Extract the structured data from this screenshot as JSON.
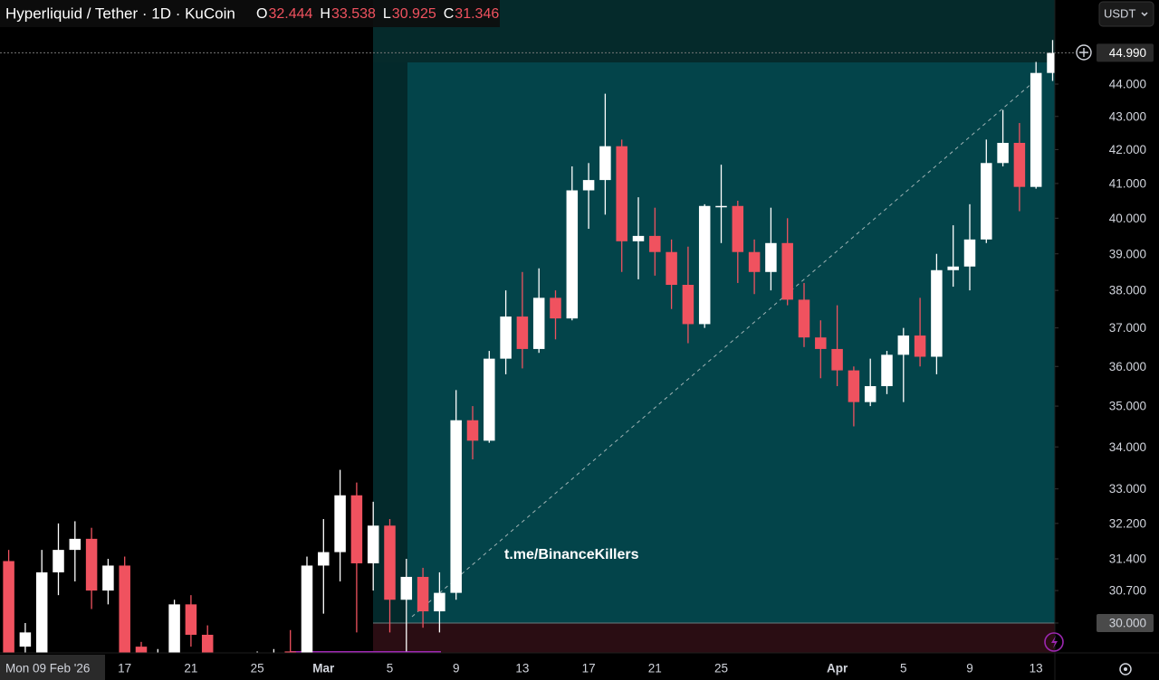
{
  "chart_data": {
    "type": "candlestick",
    "title": "Hyperliquid / Tether · 1D · KuCoin",
    "currency": "USDT",
    "watermark": "t.me/BinanceKillers",
    "ohlc_labels": [
      "O",
      "H",
      "L",
      "C"
    ],
    "log_scale": true,
    "grid": false,
    "up_color": "#ffffff",
    "down_color": "#f0525f",
    "categories": [
      "Mon 09 Feb '26",
      null,
      null,
      null,
      null,
      null,
      null,
      null,
      "17",
      null,
      null,
      null,
      "21",
      null,
      null,
      null,
      "25",
      null,
      null,
      null,
      "Mar",
      null,
      null,
      null,
      "5",
      null,
      null,
      null,
      "9",
      null,
      null,
      null,
      "13",
      null,
      null,
      null,
      "17",
      null,
      null,
      null,
      "21",
      null,
      null,
      null,
      "25",
      null,
      null,
      null,
      null,
      null,
      null,
      "Apr",
      null,
      null,
      null,
      "5",
      null,
      null,
      null,
      "9",
      null,
      null,
      null,
      "13",
      null
    ],
    "open": [
      32.444,
      31.35,
      29.5,
      29.3,
      31.1,
      31.6,
      31.85,
      30.7,
      31.25,
      29.5,
      29.2,
      29.3,
      30.4,
      29.75,
      29.3,
      29.1,
      29.0,
      29.2,
      29.4,
      29.2,
      31.25,
      31.55,
      32.85,
      31.3,
      32.15,
      30.5,
      31.0,
      30.25,
      30.65,
      34.65,
      34.15,
      36.2,
      37.3,
      36.45,
      37.8,
      37.25,
      40.8,
      41.1,
      42.1,
      39.35,
      39.5,
      39.05,
      38.15,
      37.1,
      40.35,
      40.35,
      39.05,
      38.5,
      39.3,
      37.75,
      36.75,
      36.45,
      35.9,
      35.1,
      35.5,
      36.3,
      36.8,
      36.25,
      38.55,
      38.65,
      39.4,
      41.6,
      42.2,
      40.9,
      44.35
    ],
    "high": [
      33.538,
      31.6,
      30.0,
      31.6,
      32.2,
      32.25,
      32.1,
      31.4,
      31.45,
      29.6,
      29.45,
      30.5,
      30.6,
      29.95,
      29.3,
      29.3,
      29.4,
      29.45,
      29.85,
      31.45,
      32.3,
      33.45,
      33.15,
      32.7,
      32.3,
      31.4,
      31.2,
      31.1,
      35.4,
      35.0,
      36.4,
      38.0,
      38.5,
      38.6,
      38.0,
      41.5,
      41.6,
      43.7,
      42.3,
      40.6,
      40.3,
      39.4,
      39.2,
      40.4,
      41.55,
      40.5,
      39.4,
      40.3,
      40.0,
      38.2,
      37.2,
      37.6,
      36.0,
      36.2,
      36.4,
      37.0,
      37.8,
      39.0,
      39.8,
      40.4,
      42.3,
      43.2,
      42.8,
      44.7,
      45.4
    ],
    "low": [
      30.925,
      29.0,
      29.3,
      29.2,
      30.6,
      30.9,
      30.3,
      30.4,
      29.1,
      29.1,
      29.0,
      29.1,
      29.5,
      29.1,
      28.9,
      28.8,
      28.8,
      29.0,
      29.0,
      29.1,
      30.2,
      30.9,
      29.8,
      30.7,
      29.8,
      29.4,
      29.9,
      29.8,
      30.5,
      33.7,
      34.1,
      35.8,
      35.95,
      36.35,
      36.7,
      37.2,
      39.7,
      40.1,
      38.5,
      38.3,
      38.4,
      37.5,
      36.6,
      37.0,
      39.3,
      38.2,
      37.9,
      38.0,
      37.6,
      36.5,
      35.7,
      35.5,
      34.5,
      35.0,
      35.3,
      35.1,
      36.0,
      35.8,
      38.1,
      38.0,
      39.3,
      41.5,
      40.2,
      40.85,
      44.1
    ],
    "close": [
      31.346,
      29.1,
      29.8,
      31.1,
      31.6,
      31.85,
      30.7,
      31.25,
      29.3,
      29.35,
      29.3,
      30.4,
      29.75,
      29.3,
      29.1,
      29.0,
      29.2,
      29.3,
      29.2,
      31.25,
      31.55,
      32.85,
      31.3,
      32.15,
      30.5,
      31.0,
      30.25,
      30.65,
      34.65,
      34.15,
      36.2,
      37.3,
      36.45,
      37.8,
      37.25,
      40.8,
      41.1,
      42.1,
      39.35,
      39.5,
      39.05,
      38.15,
      37.1,
      40.35,
      40.35,
      39.05,
      38.5,
      39.3,
      37.75,
      36.75,
      36.45,
      35.9,
      35.1,
      35.5,
      36.3,
      36.8,
      36.25,
      38.55,
      38.65,
      39.4,
      41.6,
      42.2,
      40.9,
      44.35,
      44.99
    ],
    "last_price": {
      "value": 44.99,
      "label": "44.990"
    },
    "ylim": [
      29.37,
      46.71
    ],
    "yticks": [
      {
        "value": 30,
        "label": "30.000"
      },
      {
        "value": 30.7,
        "label": "30.700"
      },
      {
        "value": 31.4,
        "label": "31.400"
      },
      {
        "value": 32.2,
        "label": "32.200"
      },
      {
        "value": 33,
        "label": "33.000"
      },
      {
        "value": 34,
        "label": "34.000"
      },
      {
        "value": 35,
        "label": "35.000"
      },
      {
        "value": 36,
        "label": "36.000"
      },
      {
        "value": 37,
        "label": "37.000"
      },
      {
        "value": 38,
        "label": "38.000"
      },
      {
        "value": 39,
        "label": "39.000"
      },
      {
        "value": 40,
        "label": "40.000"
      },
      {
        "value": 41,
        "label": "41.000"
      },
      {
        "value": 42,
        "label": "42.000"
      },
      {
        "value": 43,
        "label": "43.000"
      },
      {
        "value": 44,
        "label": "44.000"
      }
    ]
  }
}
